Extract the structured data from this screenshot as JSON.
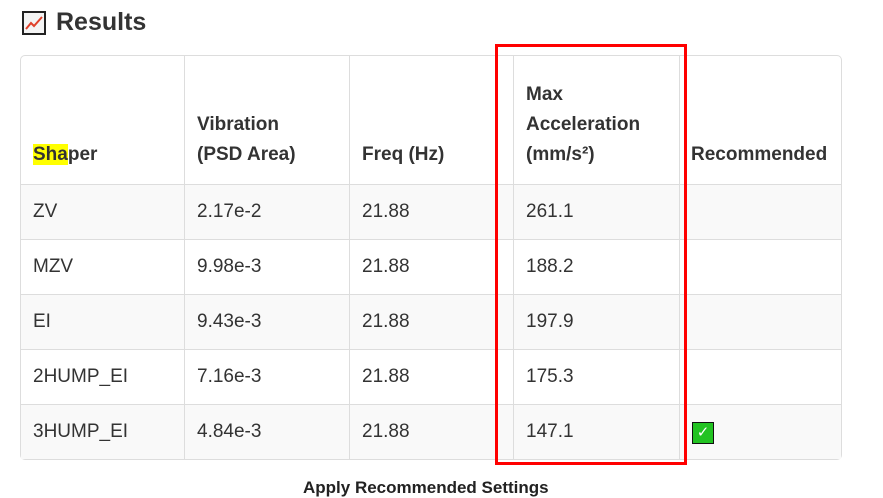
{
  "title": "Results",
  "icon": "chart-increasing-icon",
  "table": {
    "headers": {
      "shaper_hl": "Sha",
      "shaper_rest": "per",
      "vib1": "Vibration",
      "vib2": "(PSD Area)",
      "freq": "Freq (Hz)",
      "acc1": "Max",
      "acc2": "Acceleration",
      "acc3": "(mm/s²)",
      "rec": "Recommended"
    },
    "rows": [
      {
        "shaper": "ZV",
        "vibration": "2.17e-2",
        "freq": "21.88",
        "accel": "261.1",
        "recommended": false
      },
      {
        "shaper": "MZV",
        "vibration": "9.98e-3",
        "freq": "21.88",
        "accel": "188.2",
        "recommended": false
      },
      {
        "shaper": "EI",
        "vibration": "9.43e-3",
        "freq": "21.88",
        "accel": "197.9",
        "recommended": false
      },
      {
        "shaper": "2HUMP_EI",
        "vibration": "7.16e-3",
        "freq": "21.88",
        "accel": "175.3",
        "recommended": false
      },
      {
        "shaper": "3HUMP_EI",
        "vibration": "4.84e-3",
        "freq": "21.88",
        "accel": "147.1",
        "recommended": true
      }
    ]
  },
  "check_glyph": "✓",
  "apply_label": "Apply Recommended Settings",
  "colors": {
    "highlight": "#ffff00",
    "annotation": "#ff0000",
    "check": "#22c322"
  }
}
